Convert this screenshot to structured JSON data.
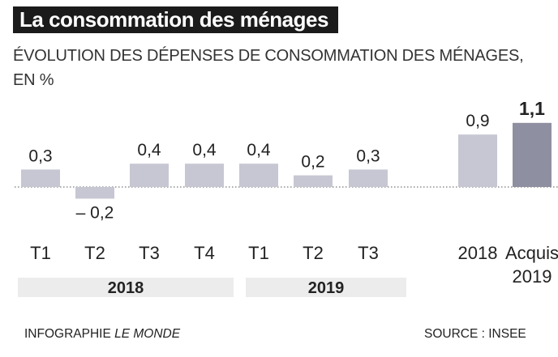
{
  "title": "La consommation des ménages",
  "subtitle": "ÉVOLUTION DES DÉPENSES DE CONSOMMATION DES MÉNAGES, EN %",
  "footer": {
    "credit_prefix": "INFOGRAPHIE",
    "credit_name": "LE MONDE",
    "source": "SOURCE : INSEE"
  },
  "colors": {
    "bar": "#c6c7d2",
    "highlight": "#8e8fa0",
    "group_band": "#ececec",
    "title_bg": "#1b1b1b"
  },
  "chart_data": {
    "type": "bar",
    "unit": "%",
    "bars": [
      {
        "label": "T1",
        "value": 0.3,
        "value_label": "0,3",
        "group": "2018"
      },
      {
        "label": "T2",
        "value": -0.2,
        "value_label": "– 0,2",
        "group": "2018"
      },
      {
        "label": "T3",
        "value": 0.4,
        "value_label": "0,4",
        "group": "2018"
      },
      {
        "label": "T4",
        "value": 0.4,
        "value_label": "0,4",
        "group": "2018"
      },
      {
        "label": "T1",
        "value": 0.4,
        "value_label": "0,4",
        "group": "2019"
      },
      {
        "label": "T2",
        "value": 0.2,
        "value_label": "0,2",
        "group": "2019"
      },
      {
        "label": "T3",
        "value": 0.3,
        "value_label": "0,3",
        "group": "2019"
      },
      {
        "label": "2018",
        "value": 0.9,
        "value_label": "0,9",
        "group": ""
      },
      {
        "label": "Acquis 2019",
        "label_lines": [
          "Acquis",
          "2019"
        ],
        "value": 1.1,
        "value_label": "1,1",
        "group": "",
        "highlight": true
      }
    ],
    "groups": [
      "2018",
      "2019"
    ],
    "baseline": "dotted",
    "ylim": [
      -0.2,
      1.1
    ]
  }
}
